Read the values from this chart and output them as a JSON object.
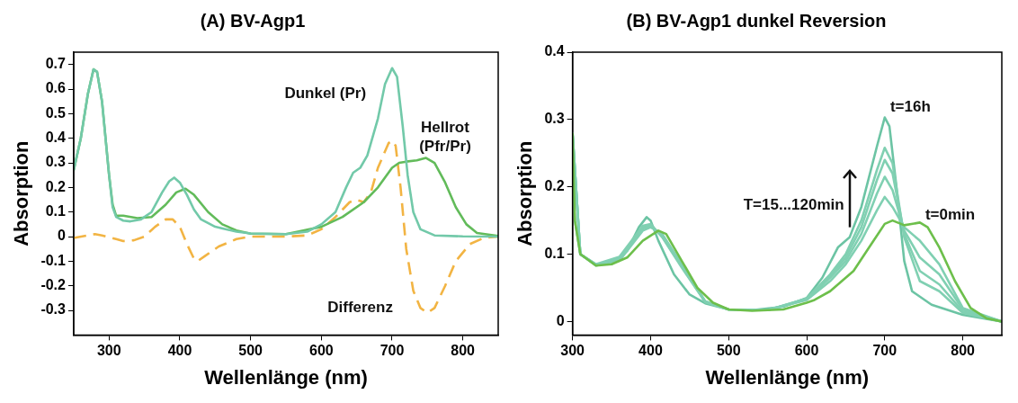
{
  "chart_data": [
    {
      "type": "line",
      "title": "(A) BV-Agp1",
      "xlabel": "Wellenlänge (nm)",
      "ylabel": "Absorption",
      "xlim": [
        250,
        850
      ],
      "xticks": [
        300,
        400,
        500,
        600,
        700,
        800
      ],
      "ylim": [
        -0.4,
        0.75
      ],
      "yticks": [
        -0.3,
        -0.2,
        -0.1,
        0,
        0.1,
        0.2,
        0.3,
        0.4,
        0.5,
        0.6,
        0.7
      ],
      "grid": false,
      "legend": false,
      "series": [
        {
          "name": "Dunkel (Pr)",
          "color": "#72c9a9",
          "x": [
            250,
            260,
            270,
            278,
            283,
            290,
            300,
            305,
            310,
            320,
            330,
            345,
            360,
            375,
            385,
            392,
            400,
            410,
            420,
            430,
            450,
            480,
            500,
            550,
            580,
            600,
            620,
            635,
            645,
            655,
            665,
            680,
            690,
            700,
            707,
            715,
            722,
            730,
            740,
            760,
            800,
            850
          ],
          "values": [
            0.27,
            0.4,
            0.58,
            0.68,
            0.67,
            0.55,
            0.25,
            0.12,
            0.08,
            0.065,
            0.062,
            0.07,
            0.1,
            0.18,
            0.225,
            0.24,
            0.22,
            0.17,
            0.11,
            0.07,
            0.04,
            0.02,
            0.013,
            0.01,
            0.02,
            0.05,
            0.1,
            0.2,
            0.26,
            0.28,
            0.33,
            0.48,
            0.62,
            0.685,
            0.65,
            0.45,
            0.25,
            0.1,
            0.03,
            0.005,
            0.001,
            0
          ]
        },
        {
          "name": "Hellrot (Pfr/Pr)",
          "color": "#62bb5a",
          "x": [
            250,
            260,
            270,
            278,
            283,
            290,
            300,
            305,
            310,
            320,
            340,
            360,
            380,
            395,
            408,
            420,
            440,
            460,
            480,
            500,
            550,
            600,
            630,
            660,
            680,
            700,
            710,
            720,
            735,
            748,
            760,
            775,
            790,
            805,
            820,
            850
          ],
          "values": [
            0.27,
            0.4,
            0.58,
            0.68,
            0.67,
            0.55,
            0.25,
            0.13,
            0.085,
            0.085,
            0.075,
            0.08,
            0.13,
            0.18,
            0.195,
            0.17,
            0.1,
            0.05,
            0.025,
            0.012,
            0.01,
            0.04,
            0.08,
            0.14,
            0.2,
            0.28,
            0.3,
            0.305,
            0.31,
            0.32,
            0.3,
            0.22,
            0.12,
            0.05,
            0.015,
            0.003
          ]
        },
        {
          "name": "Differenz",
          "color": "#f2b443",
          "line_style": "dashed",
          "x": [
            250,
            270,
            280,
            290,
            310,
            320,
            335,
            350,
            365,
            380,
            390,
            400,
            410,
            420,
            425,
            435,
            455,
            480,
            500,
            550,
            580,
            600,
            620,
            640,
            650,
            660,
            670,
            680,
            695,
            700,
            705,
            712,
            720,
            730,
            740,
            750,
            760,
            775,
            790,
            810,
            830,
            850
          ],
          "values": [
            -0.005,
            0.005,
            0.01,
            0.005,
            -0.01,
            -0.018,
            -0.015,
            0,
            0.04,
            0.07,
            0.07,
            0.04,
            -0.03,
            -0.09,
            -0.1,
            -0.08,
            -0.04,
            -0.01,
            0,
            0,
            0.005,
            0.03,
            0.08,
            0.14,
            0.15,
            0.14,
            0.18,
            0.28,
            0.38,
            0.39,
            0.37,
            0.2,
            -0.05,
            -0.22,
            -0.29,
            -0.31,
            -0.29,
            -0.2,
            -0.1,
            -0.03,
            -0.005,
            0
          ]
        }
      ]
    },
    {
      "type": "line",
      "title": "(B) BV-Agp1 dunkel Reversion",
      "xlabel": "Wellenlänge (nm)",
      "ylabel": "Absorption",
      "xlim": [
        300,
        850
      ],
      "xticks": [
        300,
        400,
        500,
        600,
        700,
        800
      ],
      "ylim": [
        -0.02,
        0.4
      ],
      "yticks": [
        0,
        0.1,
        0.2,
        0.3,
        0.4
      ],
      "grid": false,
      "legend": false,
      "annotations": [
        "T=15...120min"
      ],
      "series": [
        {
          "name": "t=0min",
          "color": "#6dbf4b",
          "x": [
            300,
            303,
            310,
            330,
            350,
            370,
            390,
            410,
            420,
            440,
            460,
            480,
            500,
            530,
            570,
            600,
            610,
            630,
            660,
            680,
            700,
            710,
            725,
            745,
            755,
            770,
            790,
            810,
            830,
            850
          ],
          "values": [
            0.28,
            0.15,
            0.1,
            0.083,
            0.085,
            0.095,
            0.12,
            0.135,
            0.13,
            0.09,
            0.05,
            0.028,
            0.018,
            0.016,
            0.018,
            0.028,
            0.032,
            0.045,
            0.075,
            0.11,
            0.145,
            0.15,
            0.143,
            0.147,
            0.14,
            0.11,
            0.06,
            0.02,
            0.005,
            0
          ]
        },
        {
          "color": "#80d0b2",
          "x": [
            300,
            310,
            330,
            360,
            390,
            400,
            415,
            440,
            470,
            500,
            550,
            600,
            630,
            650,
            670,
            690,
            700,
            710,
            725,
            745,
            770,
            800,
            850
          ],
          "values": [
            0.28,
            0.1,
            0.083,
            0.09,
            0.135,
            0.14,
            0.13,
            0.085,
            0.03,
            0.018,
            0.017,
            0.032,
            0.06,
            0.085,
            0.12,
            0.165,
            0.185,
            0.17,
            0.14,
            0.12,
            0.085,
            0.02,
            0
          ]
        },
        {
          "color": "#80d0b2",
          "x": [
            300,
            310,
            330,
            360,
            390,
            400,
            415,
            440,
            470,
            500,
            550,
            600,
            630,
            650,
            670,
            690,
            700,
            710,
            725,
            745,
            770,
            800,
            850
          ],
          "values": [
            0.28,
            0.1,
            0.084,
            0.092,
            0.138,
            0.142,
            0.128,
            0.083,
            0.03,
            0.018,
            0.017,
            0.033,
            0.065,
            0.09,
            0.13,
            0.19,
            0.215,
            0.195,
            0.135,
            0.095,
            0.07,
            0.018,
            0
          ]
        },
        {
          "color": "#80d0b2",
          "x": [
            300,
            310,
            330,
            360,
            390,
            400,
            415,
            440,
            470,
            500,
            550,
            600,
            630,
            650,
            670,
            690,
            700,
            710,
            725,
            745,
            770,
            800,
            850
          ],
          "values": [
            0.28,
            0.1,
            0.084,
            0.094,
            0.14,
            0.143,
            0.126,
            0.082,
            0.029,
            0.018,
            0.017,
            0.034,
            0.068,
            0.095,
            0.14,
            0.21,
            0.24,
            0.22,
            0.13,
            0.075,
            0.055,
            0.015,
            0
          ]
        },
        {
          "color": "#80d0b2",
          "x": [
            300,
            310,
            330,
            360,
            390,
            400,
            415,
            440,
            470,
            500,
            550,
            600,
            630,
            650,
            670,
            690,
            700,
            710,
            725,
            745,
            770,
            800,
            850
          ],
          "values": [
            0.28,
            0.1,
            0.085,
            0.096,
            0.142,
            0.145,
            0.125,
            0.08,
            0.029,
            0.018,
            0.017,
            0.034,
            0.07,
            0.1,
            0.15,
            0.225,
            0.258,
            0.235,
            0.125,
            0.06,
            0.045,
            0.013,
            0
          ]
        },
        {
          "name": "t=16h",
          "color": "#6cc4a4",
          "x": [
            300,
            303,
            310,
            330,
            350,
            370,
            385,
            395,
            400,
            410,
            430,
            450,
            470,
            500,
            530,
            570,
            600,
            620,
            640,
            655,
            670,
            690,
            700,
            706,
            715,
            725,
            735,
            760,
            800,
            850
          ],
          "values": [
            0.28,
            0.15,
            0.1,
            0.085,
            0.085,
            0.105,
            0.14,
            0.155,
            0.15,
            0.12,
            0.07,
            0.04,
            0.027,
            0.018,
            0.017,
            0.022,
            0.035,
            0.065,
            0.11,
            0.125,
            0.17,
            0.26,
            0.303,
            0.29,
            0.2,
            0.09,
            0.045,
            0.025,
            0.01,
            0
          ]
        }
      ]
    }
  ]
}
